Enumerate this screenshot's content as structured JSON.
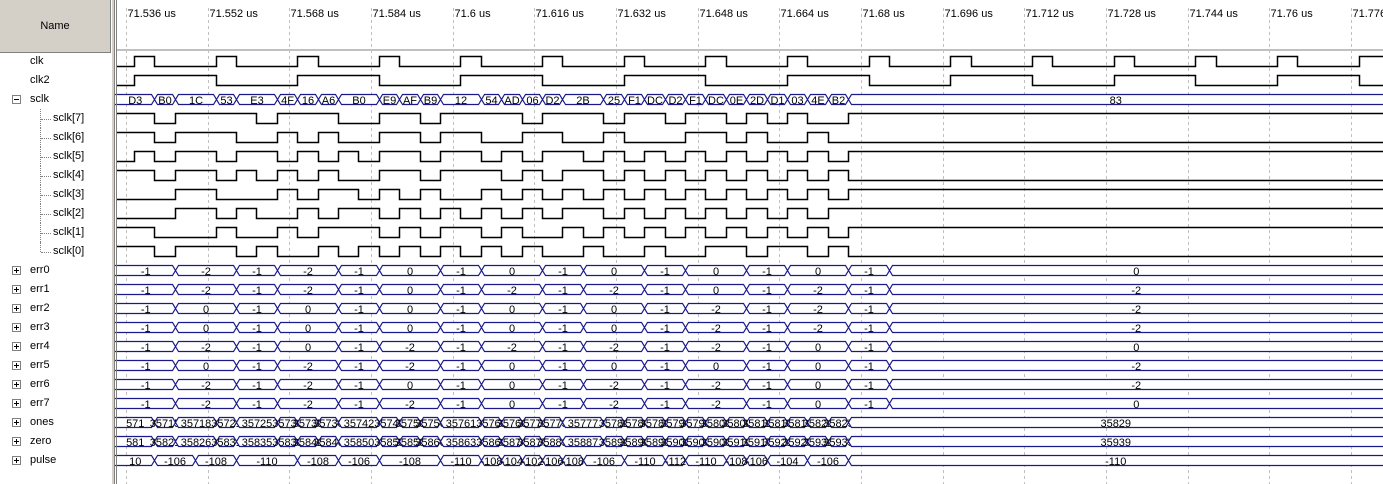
{
  "name_header": "Name",
  "colors": {
    "wave_bus": "#1a1a8c",
    "wave_bit": "#000000",
    "grid": "#c0c0c0",
    "panel": "#d4d0c8"
  },
  "time_axis": {
    "unit": "us",
    "first_visible_us": 71.534,
    "last_visible_us": 71.7823,
    "tick_labels": [
      "71.536 us",
      "71.552 us",
      "71.568 us",
      "71.584 us",
      "71.6 us",
      "71.616 us",
      "71.632 us",
      "71.648 us",
      "71.664 us",
      "71.68 us",
      "71.696 us",
      "71.712 us",
      "71.728 us",
      "71.744 us",
      "71.76 us",
      "71.776 us"
    ],
    "tick_values_us": [
      71.536,
      71.552,
      71.568,
      71.584,
      71.6,
      71.616,
      71.632,
      71.648,
      71.664,
      71.68,
      71.696,
      71.712,
      71.728,
      71.744,
      71.76,
      71.776
    ]
  },
  "signals": [
    {
      "name": "clk",
      "kind": "bit",
      "indent": 0,
      "expander": "none",
      "initial": 0,
      "toggles_us": [
        71.5375,
        71.5415,
        71.5535,
        71.5575,
        71.5695,
        71.5735,
        71.5855,
        71.5895,
        71.6015,
        71.6055,
        71.6175,
        71.6215,
        71.6335,
        71.6375,
        71.6495,
        71.6535,
        71.6655,
        71.6695,
        71.6815,
        71.6855,
        71.6975,
        71.7015,
        71.7135,
        71.7175,
        71.7295,
        71.7335,
        71.7455,
        71.7495,
        71.7615,
        71.7655,
        71.7775
      ]
    },
    {
      "name": "clk2",
      "kind": "bit",
      "indent": 0,
      "expander": "none",
      "initial": 0,
      "toggles_us": [
        71.5375,
        71.5535,
        71.5695,
        71.5855,
        71.6015,
        71.6175,
        71.6335,
        71.6495,
        71.6655,
        71.6815,
        71.6975,
        71.7135,
        71.7295,
        71.7455,
        71.7615,
        71.7775
      ]
    },
    {
      "name": "sclk",
      "kind": "bus",
      "indent": 0,
      "expander": "minus",
      "values": [
        "D3",
        "B0",
        "1C",
        "53",
        "E3",
        "4F",
        "16",
        "A6",
        "B0",
        "E9",
        "AF",
        "B9",
        "12",
        "54",
        "AD",
        "06",
        "D2",
        "2B",
        "25",
        "F1",
        "DC",
        "D2",
        "F1",
        "DC",
        "0E",
        "2D",
        "D1",
        "03",
        "4E",
        "B2",
        "83"
      ],
      "change_us": [
        71.5375,
        71.5415,
        71.5455,
        71.5535,
        71.5575,
        71.5655,
        71.5695,
        71.5735,
        71.5775,
        71.5855,
        71.5895,
        71.5935,
        71.5975,
        71.6055,
        71.6095,
        71.6135,
        71.6175,
        71.6215,
        71.6295,
        71.6335,
        71.6375,
        71.6415,
        71.6455,
        71.6495,
        71.6535,
        71.6575,
        71.6615,
        71.6655,
        71.6695,
        71.6735,
        71.6775
      ]
    },
    {
      "name": "sclk[7]",
      "kind": "bit",
      "indent": 1,
      "expander": "none",
      "initial": 1,
      "toggles_us": [
        71.5415,
        71.5455,
        71.5615,
        71.5655,
        71.5775,
        71.5855,
        71.5935,
        71.5975,
        71.6135,
        71.6175,
        71.6295,
        71.6335,
        71.6415,
        71.6455,
        71.6535,
        71.6575,
        71.6615,
        71.6655,
        71.6695,
        71.6775
      ]
    },
    {
      "name": "sclk[6]",
      "kind": "bit",
      "indent": 1,
      "expander": "none",
      "initial": 1,
      "toggles_us": [
        71.5415,
        71.5455,
        71.5575,
        71.5655,
        71.5695,
        71.5735,
        71.5775,
        71.5855,
        71.5935,
        71.5975,
        71.6055,
        71.6135,
        71.6215,
        71.6295,
        71.6335,
        71.6455,
        71.6535,
        71.6575,
        71.6615,
        71.6695,
        71.6735
      ]
    },
    {
      "name": "sclk[5]",
      "kind": "bit",
      "indent": 1,
      "expander": "none",
      "initial": 0,
      "toggles_us": [
        71.5375,
        71.5415,
        71.5455,
        71.5535,
        71.5575,
        71.5655,
        71.5695,
        71.5735,
        71.5775,
        71.5815,
        71.5855,
        71.5935,
        71.5975,
        71.6055,
        71.6095,
        71.6135,
        71.6175,
        71.6255,
        71.6295,
        71.6335,
        71.6375,
        71.6415,
        71.6455,
        71.6495,
        71.6535,
        71.6575,
        71.6615,
        71.6655,
        71.6695,
        71.6735,
        71.6775
      ]
    },
    {
      "name": "sclk[4]",
      "kind": "bit",
      "indent": 1,
      "expander": "none",
      "initial": 1,
      "toggles_us": [
        71.5415,
        71.5455,
        71.5535,
        71.5575,
        71.5615,
        71.5655,
        71.5695,
        71.5735,
        71.5775,
        71.5855,
        71.5935,
        71.5975,
        71.6095,
        71.6135,
        71.6175,
        71.6215,
        71.6295,
        71.6335,
        71.6375,
        71.6415,
        71.6455,
        71.6495,
        71.6535,
        71.6575,
        71.6615,
        71.6655,
        71.6695,
        71.6735,
        71.6775
      ]
    },
    {
      "name": "sclk[3]",
      "kind": "bit",
      "indent": 1,
      "expander": "none",
      "initial": 0,
      "toggles_us": [
        71.5455,
        71.5535,
        71.5655,
        71.5695,
        71.5735,
        71.5815,
        71.5855,
        71.5895,
        71.5935,
        71.5975,
        71.6055,
        71.6095,
        71.6135,
        71.6175,
        71.6215,
        71.6255,
        71.6295,
        71.6335,
        71.6375,
        71.6415,
        71.6455,
        71.6495,
        71.6535,
        71.6575,
        71.6615,
        71.6655,
        71.6695,
        71.6735,
        71.6775
      ]
    },
    {
      "name": "sclk[2]",
      "kind": "bit",
      "indent": 1,
      "expander": "none",
      "initial": 0,
      "toggles_us": [
        71.5455,
        71.5535,
        71.5575,
        71.5615,
        71.5695,
        71.5735,
        71.5775,
        71.5855,
        71.5895,
        71.5935,
        71.5975,
        71.6015,
        71.6055,
        71.6095,
        71.6135,
        71.6175,
        71.6215,
        71.6295,
        71.6335,
        71.6375,
        71.6415,
        71.6455,
        71.6495,
        71.6535,
        71.6575,
        71.6615,
        71.6655,
        71.6695,
        71.6735
      ]
    },
    {
      "name": "sclk[1]",
      "kind": "bit",
      "indent": 1,
      "expander": "none",
      "initial": 1,
      "toggles_us": [
        71.5415,
        71.5535,
        71.5575,
        71.5655,
        71.5695,
        71.5735,
        71.5855,
        71.5895,
        71.5935,
        71.5975,
        71.6055,
        71.6095,
        71.6135,
        71.6215,
        71.6255,
        71.6295,
        71.6335,
        71.6375,
        71.6415,
        71.6455,
        71.6495,
        71.6535,
        71.6575,
        71.6615,
        71.6655,
        71.6695,
        71.6735,
        71.6775
      ]
    },
    {
      "name": "sclk[0]",
      "kind": "bit",
      "indent": 1,
      "expander": "none",
      "initial": 1,
      "toggles_us": [
        71.5415,
        71.5455,
        71.5575,
        71.5615,
        71.5655,
        71.5735,
        71.5775,
        71.5815,
        71.5855,
        71.5895,
        71.5935,
        71.5975,
        71.6015,
        71.6055,
        71.6095,
        71.6135,
        71.6175,
        71.6255,
        71.6295,
        71.6375,
        71.6415,
        71.6495,
        71.6575,
        71.6615,
        71.6695,
        71.6735,
        71.6775
      ]
    },
    {
      "name": "err0",
      "kind": "bus",
      "indent": 0,
      "expander": "plus",
      "values": [
        "-1",
        "-2",
        "-1",
        "-2",
        "-1",
        "0",
        "-1",
        "0",
        "-1",
        "0",
        "-1",
        "0",
        "-1",
        "0",
        "-1",
        "0"
      ],
      "change_us": [
        71.5375,
        71.5455,
        71.5575,
        71.5655,
        71.5775,
        71.5855,
        71.5975,
        71.6055,
        71.6175,
        71.6255,
        71.6375,
        71.6455,
        71.6575,
        71.6655,
        71.6775,
        71.6855
      ]
    },
    {
      "name": "err1",
      "kind": "bus",
      "indent": 0,
      "expander": "plus",
      "values": [
        "-1",
        "-2",
        "-1",
        "-2",
        "-1",
        "0",
        "-1",
        "-2",
        "-1",
        "-2",
        "-1",
        "0",
        "-1",
        "-2",
        "-1",
        "-2"
      ],
      "change_us": [
        71.5375,
        71.5455,
        71.5575,
        71.5655,
        71.5775,
        71.5855,
        71.5975,
        71.6055,
        71.6175,
        71.6255,
        71.6375,
        71.6455,
        71.6575,
        71.6655,
        71.6775,
        71.6855
      ]
    },
    {
      "name": "err2",
      "kind": "bus",
      "indent": 0,
      "expander": "plus",
      "values": [
        "-1",
        "0",
        "-1",
        "0",
        "-1",
        "0",
        "-1",
        "0",
        "-1",
        "0",
        "-1",
        "-2",
        "-1",
        "-2",
        "-1",
        "-2"
      ],
      "change_us": [
        71.5375,
        71.5455,
        71.5575,
        71.5655,
        71.5775,
        71.5855,
        71.5975,
        71.6055,
        71.6175,
        71.6255,
        71.6375,
        71.6455,
        71.6575,
        71.6655,
        71.6775,
        71.6855
      ]
    },
    {
      "name": "err3",
      "kind": "bus",
      "indent": 0,
      "expander": "plus",
      "values": [
        "-1",
        "0",
        "-1",
        "0",
        "-1",
        "0",
        "-1",
        "0",
        "-1",
        "0",
        "-1",
        "-2",
        "-1",
        "-2",
        "-1",
        "-2"
      ],
      "change_us": [
        71.5375,
        71.5455,
        71.5575,
        71.5655,
        71.5775,
        71.5855,
        71.5975,
        71.6055,
        71.6175,
        71.6255,
        71.6375,
        71.6455,
        71.6575,
        71.6655,
        71.6775,
        71.6855
      ]
    },
    {
      "name": "err4",
      "kind": "bus",
      "indent": 0,
      "expander": "plus",
      "values": [
        "-1",
        "-2",
        "-1",
        "0",
        "-1",
        "-2",
        "-1",
        "-2",
        "-1",
        "-2",
        "-1",
        "-2",
        "-1",
        "0",
        "-1",
        "0"
      ],
      "change_us": [
        71.5375,
        71.5455,
        71.5575,
        71.5655,
        71.5775,
        71.5855,
        71.5975,
        71.6055,
        71.6175,
        71.6255,
        71.6375,
        71.6455,
        71.6575,
        71.6655,
        71.6775,
        71.6855
      ]
    },
    {
      "name": "err5",
      "kind": "bus",
      "indent": 0,
      "expander": "plus",
      "values": [
        "-1",
        "0",
        "-1",
        "-2",
        "-1",
        "-2",
        "-1",
        "0",
        "-1",
        "0",
        "-1",
        "0",
        "-1",
        "0",
        "-1",
        "-2"
      ],
      "change_us": [
        71.5375,
        71.5455,
        71.5575,
        71.5655,
        71.5775,
        71.5855,
        71.5975,
        71.6055,
        71.6175,
        71.6255,
        71.6375,
        71.6455,
        71.6575,
        71.6655,
        71.6775,
        71.6855
      ]
    },
    {
      "name": "err6",
      "kind": "bus",
      "indent": 0,
      "expander": "plus",
      "values": [
        "-1",
        "-2",
        "-1",
        "-2",
        "-1",
        "0",
        "-1",
        "0",
        "-1",
        "-2",
        "-1",
        "-2",
        "-1",
        "0",
        "-1",
        "-2"
      ],
      "change_us": [
        71.5375,
        71.5455,
        71.5575,
        71.5655,
        71.5775,
        71.5855,
        71.5975,
        71.6055,
        71.6175,
        71.6255,
        71.6375,
        71.6455,
        71.6575,
        71.6655,
        71.6775,
        71.6855
      ]
    },
    {
      "name": "err7",
      "kind": "bus",
      "indent": 0,
      "expander": "plus",
      "values": [
        "-1",
        "-2",
        "-1",
        "-2",
        "-1",
        "-2",
        "-1",
        "0",
        "-1",
        "-2",
        "-1",
        "-2",
        "-1",
        "0",
        "-1",
        "0"
      ],
      "change_us": [
        71.5375,
        71.5455,
        71.5575,
        71.5655,
        71.5775,
        71.5855,
        71.5975,
        71.6055,
        71.6175,
        71.6255,
        71.6375,
        71.6455,
        71.6575,
        71.6655,
        71.6775,
        71.6855
      ]
    },
    {
      "name": "ones",
      "kind": "bus",
      "indent": 0,
      "expander": "plus",
      "values": [
        "571",
        "35715",
        "35718",
        "35721",
        "35725",
        "35730",
        "35735",
        "35738",
        "35742",
        "35745",
        "35750",
        "35756",
        "35761",
        "35763",
        "35766",
        "35771",
        "35773",
        "35777",
        "35781",
        "35784",
        "35789",
        "35794",
        "35798",
        "35803",
        "35808",
        "35811",
        "35815",
        "35819",
        "35821",
        "35825",
        "35829"
      ],
      "change_us": [
        71.5375,
        71.5415,
        71.5455,
        71.5535,
        71.5575,
        71.5655,
        71.5695,
        71.5735,
        71.5775,
        71.5855,
        71.5895,
        71.5935,
        71.5975,
        71.6055,
        71.6095,
        71.6135,
        71.6175,
        71.6215,
        71.6295,
        71.6335,
        71.6375,
        71.6415,
        71.6455,
        71.6495,
        71.6535,
        71.6575,
        71.6615,
        71.6655,
        71.6695,
        71.6735,
        71.6775
      ]
    },
    {
      "name": "zero",
      "kind": "bus",
      "indent": 0,
      "expander": "plus",
      "values": [
        "581",
        "35821",
        "35826",
        "35831",
        "35835",
        "35838",
        "35841",
        "35846",
        "35850",
        "35855",
        "35858",
        "35860",
        "35863",
        "35869",
        "35874",
        "35877",
        "35883",
        "35887",
        "35891",
        "35896",
        "35899",
        "35902",
        "35906",
        "35909",
        "35912",
        "35917",
        "35921",
        "35925",
        "35931",
        "35935",
        "35939"
      ],
      "change_us": [
        71.5375,
        71.5415,
        71.5455,
        71.5535,
        71.5575,
        71.5655,
        71.5695,
        71.5735,
        71.5775,
        71.5855,
        71.5895,
        71.5935,
        71.5975,
        71.6055,
        71.6095,
        71.6135,
        71.6175,
        71.6215,
        71.6295,
        71.6335,
        71.6375,
        71.6415,
        71.6455,
        71.6495,
        71.6535,
        71.6575,
        71.6615,
        71.6655,
        71.6695,
        71.6735,
        71.6775
      ]
    },
    {
      "name": "pulse",
      "kind": "bus",
      "indent": 0,
      "expander": "plus",
      "values": [
        "10",
        "-106",
        "-108",
        "-110",
        "-108",
        "-106",
        "-108",
        "-110",
        "-108",
        "-104",
        "-102",
        "-106",
        "-108",
        "-106",
        "-110",
        "-112",
        "-110",
        "-108",
        "-106",
        "-104",
        "-106",
        "-110"
      ],
      "change_us": [
        71.5375,
        71.5415,
        71.5495,
        71.5575,
        71.5695,
        71.5775,
        71.5855,
        71.5975,
        71.6055,
        71.6095,
        71.6135,
        71.6175,
        71.6215,
        71.6255,
        71.6335,
        71.6415,
        71.6455,
        71.6535,
        71.6575,
        71.6615,
        71.6695,
        71.6775
      ]
    }
  ]
}
